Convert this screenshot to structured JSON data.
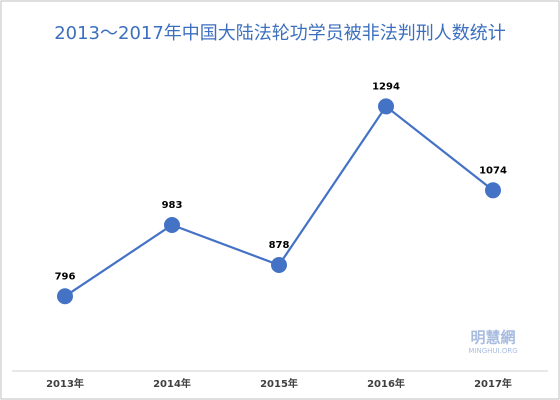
{
  "chart_data": {
    "type": "line",
    "title": "2013～2017年中国大陆法轮功学员被非法判刑人数统计",
    "categories": [
      "2013年",
      "2014年",
      "2015年",
      "2016年",
      "2017年"
    ],
    "values": [
      796,
      983,
      878,
      1294,
      1074
    ],
    "color": "#4472c4",
    "ylim": [
      600,
      1400
    ],
    "watermark": {
      "name": "明慧網",
      "site": "MINGHUI.ORG"
    }
  }
}
